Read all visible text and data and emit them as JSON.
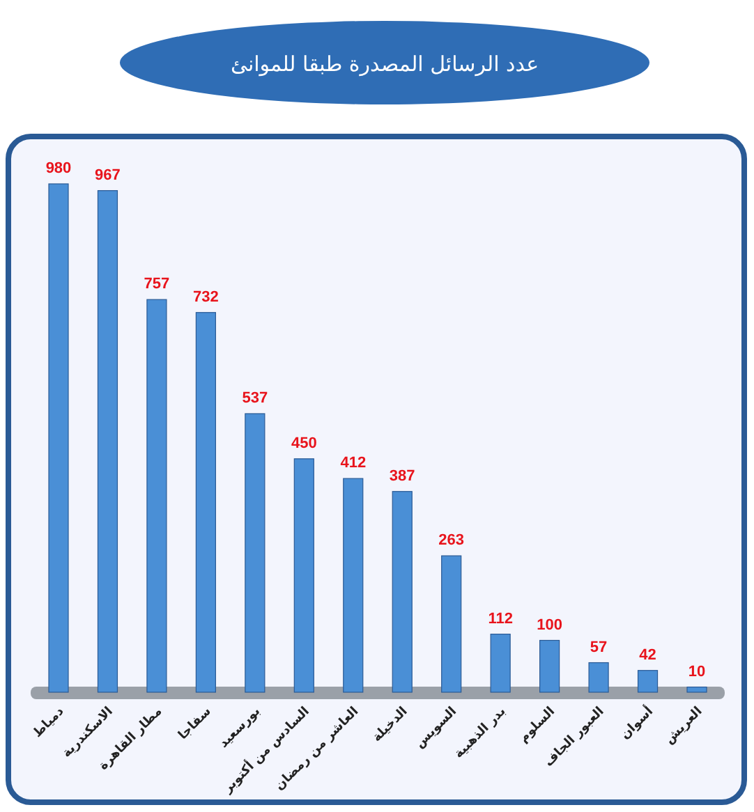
{
  "chart_data": {
    "type": "bar",
    "title": "عدد الرسائل المصدرة طبقا للموانئ",
    "categories": [
      "دمياط",
      "الاسكندرية",
      "مطار القاهرة",
      "سفاجا",
      "بورسعيد",
      "السادس من أكتوبر",
      "العاشر من رمضان",
      "الدخيلة",
      "السويس",
      "بدر الذهبية",
      "السلوم",
      "العبور الجاف",
      "أسوان",
      "العريش"
    ],
    "values": [
      980,
      967,
      757,
      732,
      537,
      450,
      412,
      387,
      263,
      112,
      100,
      57,
      42,
      10
    ],
    "color": "#4a8fd6",
    "data_labels": true
  }
}
